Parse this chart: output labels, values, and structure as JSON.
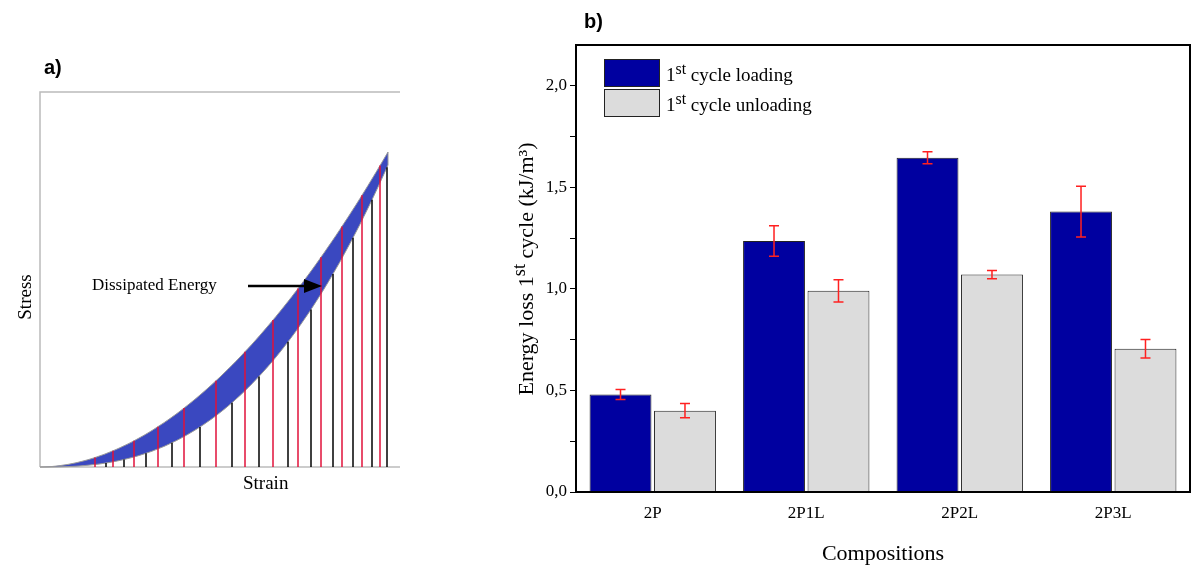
{
  "chart_data": [
    {
      "type": "other",
      "title": "a)",
      "xlabel": "Strain",
      "ylabel": "Stress",
      "annotations": [
        "Dissipated Energy"
      ]
    },
    {
      "type": "bar",
      "title": "b)",
      "categories": [
        "2P",
        "2P1L",
        "2P2L",
        "2P3L"
      ],
      "xlabel": "Compositions",
      "ylabel": "Energy loss 1$^{st}$ cycle (kJ/m³)",
      "series": [
        {
          "name": "1$^{st}$ cycle loading",
          "color": "#0000a0",
          "values": [
            0.48,
            1.235,
            1.645,
            1.38
          ],
          "errors": [
            0.025,
            0.075,
            0.03,
            0.125
          ]
        },
        {
          "name": "1$^{st}$ cycle unloading",
          "color": "#dcdcdc",
          "values": [
            0.4,
            0.99,
            1.07,
            0.705
          ],
          "errors": [
            0.035,
            0.055,
            0.02,
            0.045
          ]
        }
      ],
      "ylim": [
        0,
        2.2
      ],
      "yticks": [
        {
          "value": 0,
          "label": "0,0"
        },
        {
          "value": 0.25,
          "label": null
        },
        {
          "value": 0.5,
          "label": "0,5"
        },
        {
          "value": 0.75,
          "label": null
        },
        {
          "value": 1,
          "label": "1,0"
        },
        {
          "value": 1.25,
          "label": null
        },
        {
          "value": 1.5,
          "label": "1,5"
        },
        {
          "value": 1.75,
          "label": null
        },
        {
          "value": 2,
          "label": "2,0"
        }
      ],
      "grid": false,
      "legend": "top left"
    }
  ]
}
